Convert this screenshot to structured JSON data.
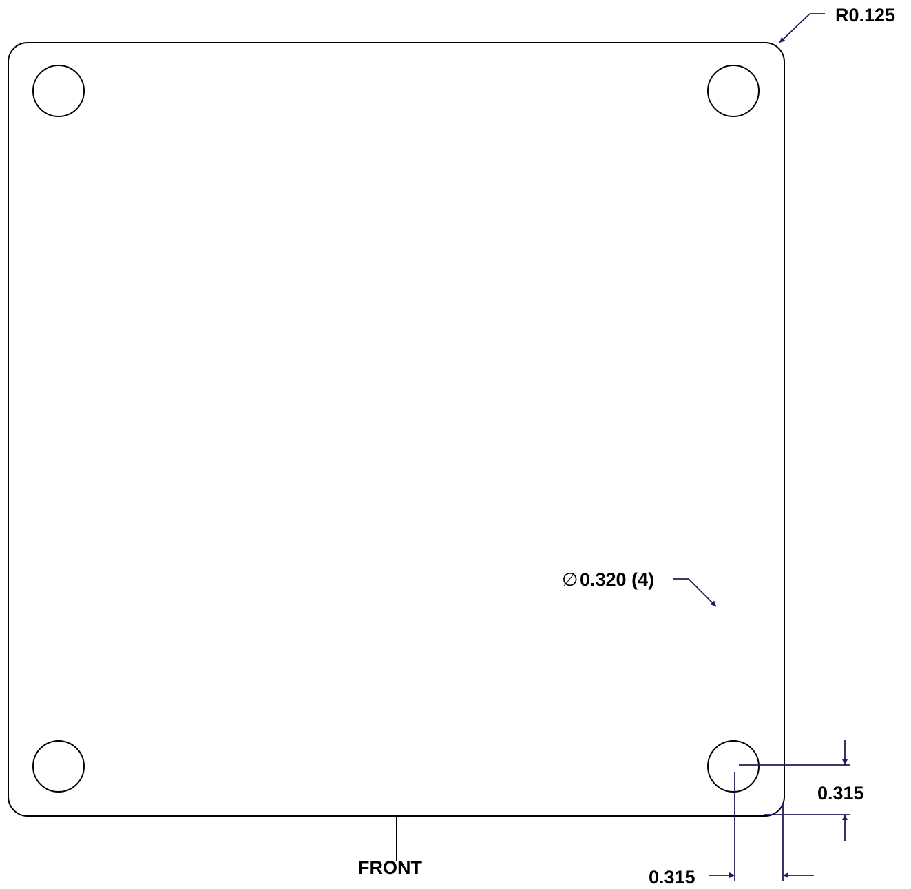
{
  "drawing": {
    "corner_radius_label": "R0.125",
    "hole_diameter_symbol": "∅",
    "hole_diameter_label": "0.320 (4)",
    "vertical_offset_label": "0.315",
    "horizontal_offset_label": "0.315",
    "front_label": "FRONT"
  },
  "colors": {
    "outline": "#000000",
    "dimension": "#1e1e5a"
  }
}
